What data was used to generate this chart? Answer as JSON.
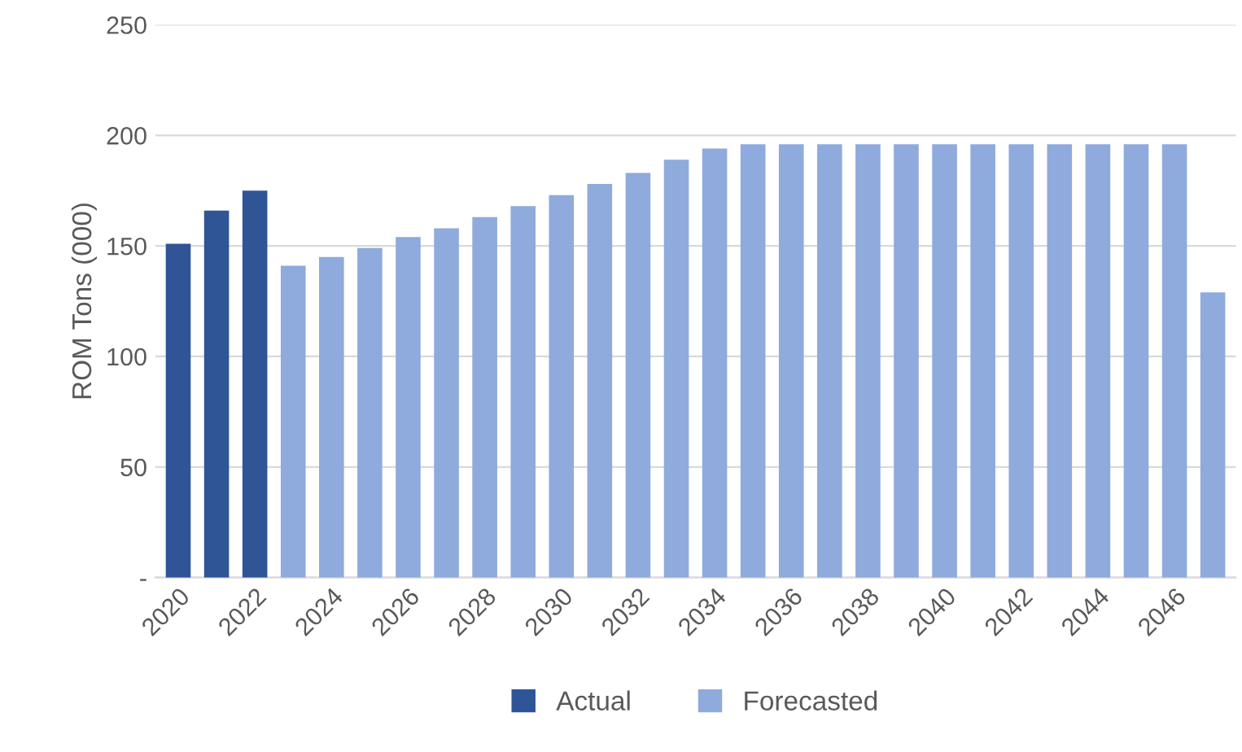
{
  "chart_data": {
    "type": "bar",
    "ylabel": "ROM Tons (000)",
    "categories": [
      "2020",
      null,
      "2022",
      null,
      "2024",
      null,
      "2026",
      null,
      "2028",
      null,
      "2030",
      null,
      "2032",
      null,
      "2034",
      null,
      "2036",
      null,
      "2038",
      null,
      "2040",
      null,
      "2042",
      null,
      "2044",
      null,
      "2046",
      null
    ],
    "series": [
      {
        "name": "Actual",
        "color": "#2f5597",
        "values": [
          151,
          166,
          175,
          null,
          null,
          null,
          null,
          null,
          null,
          null,
          null,
          null,
          null,
          null,
          null,
          null,
          null,
          null,
          null,
          null,
          null,
          null,
          null,
          null,
          null,
          null,
          null,
          null
        ]
      },
      {
        "name": "Forecasted",
        "color": "#8faadc",
        "values": [
          null,
          null,
          null,
          141,
          145,
          149,
          154,
          158,
          163,
          168,
          173,
          178,
          183,
          189,
          194,
          196,
          196,
          196,
          196,
          196,
          196,
          196,
          196,
          196,
          196,
          196,
          196,
          129
        ]
      }
    ],
    "ylim": [
      0,
      250
    ],
    "yticks": [
      {
        "value": 0,
        "label": "-"
      },
      50,
      100,
      150,
      200,
      250
    ],
    "grid": "y",
    "legend": "bottom"
  }
}
